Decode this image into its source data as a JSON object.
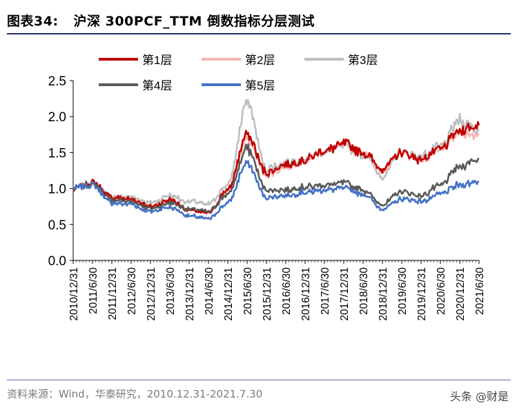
{
  "header": {
    "figure_label": "图表34:",
    "title": "沪深 300PCF_TTM 倒数指标分层测试"
  },
  "footer": {
    "source": "资料来源：Wind，华泰研究，2010.12.31-2021.7.30",
    "watermark": "头条 @财是"
  },
  "chart_data": {
    "type": "line",
    "title": "沪深 300PCF_TTM 倒数指标分层测试",
    "xlabel": "",
    "ylabel": "",
    "ylim": [
      0.0,
      2.5
    ],
    "yticks": [
      "0.0",
      "0.5",
      "1.0",
      "1.5",
      "2.0",
      "2.5"
    ],
    "x_tick_labels": [
      "2010/12/31",
      "2011/6/30",
      "2011/12/31",
      "2012/6/30",
      "2012/12/31",
      "2013/6/30",
      "2013/12/31",
      "2014/6/30",
      "2014/12/31",
      "2015/6/30",
      "2015/12/31",
      "2016/6/30",
      "2016/12/31",
      "2017/6/30",
      "2017/12/31",
      "2018/6/30",
      "2018/12/31",
      "2019/6/30",
      "2019/12/31",
      "2020/6/30",
      "2020/12/31",
      "2021/6/30"
    ],
    "legend_position": "top",
    "grid": false,
    "series": [
      {
        "name": "第1层",
        "color": "#c00000",
        "values": [
          1.0,
          1.08,
          0.88,
          0.85,
          0.75,
          0.84,
          0.7,
          0.66,
          0.98,
          1.75,
          1.22,
          1.32,
          1.4,
          1.52,
          1.62,
          1.5,
          1.28,
          1.5,
          1.4,
          1.55,
          1.8,
          1.88
        ]
      },
      {
        "name": "第2层",
        "color": "#f8b4b4",
        "values": [
          1.0,
          1.08,
          0.86,
          0.84,
          0.74,
          0.82,
          0.7,
          0.67,
          0.96,
          1.68,
          1.2,
          1.3,
          1.38,
          1.52,
          1.6,
          1.52,
          1.25,
          1.5,
          1.4,
          1.52,
          1.78,
          1.75
        ]
      },
      {
        "name": "第3层",
        "color": "#bfbfbf",
        "values": [
          1.0,
          1.08,
          0.9,
          0.88,
          0.8,
          0.9,
          0.82,
          0.78,
          1.05,
          2.2,
          1.28,
          1.35,
          1.42,
          1.52,
          1.58,
          1.48,
          1.18,
          1.5,
          1.45,
          1.58,
          1.95,
          1.82
        ]
      },
      {
        "name": "第4层",
        "color": "#595959",
        "values": [
          1.0,
          1.06,
          0.84,
          0.82,
          0.72,
          0.8,
          0.72,
          0.68,
          0.92,
          1.55,
          0.98,
          0.98,
          1.02,
          1.05,
          1.08,
          0.98,
          0.78,
          0.95,
          0.9,
          1.05,
          1.3,
          1.42
        ]
      },
      {
        "name": "第5层",
        "color": "#4472c4",
        "values": [
          1.0,
          1.05,
          0.8,
          0.78,
          0.68,
          0.74,
          0.62,
          0.58,
          0.8,
          1.35,
          0.88,
          0.9,
          0.95,
          0.98,
          1.0,
          0.92,
          0.72,
          0.85,
          0.82,
          0.92,
          1.05,
          1.1
        ]
      }
    ]
  }
}
